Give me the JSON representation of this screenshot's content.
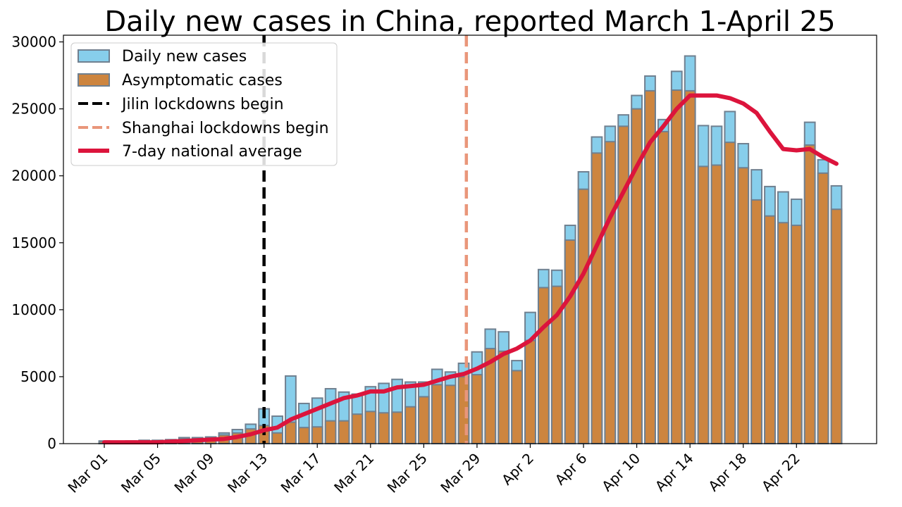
{
  "chart_data": {
    "type": "bar",
    "title": "Daily new cases in China, reported March 1-April 25",
    "xlabel": "",
    "ylabel": "",
    "ylim": [
      0,
      30500
    ],
    "yticks": [
      0,
      5000,
      10000,
      15000,
      20000,
      25000,
      30000
    ],
    "categories": [
      "Mar 01",
      "Mar 02",
      "Mar 03",
      "Mar 04",
      "Mar 05",
      "Mar 06",
      "Mar 07",
      "Mar 08",
      "Mar 09",
      "Mar 10",
      "Mar 11",
      "Mar 12",
      "Mar 13",
      "Mar 14",
      "Mar 15",
      "Mar 16",
      "Mar 17",
      "Mar 18",
      "Mar 19",
      "Mar 20",
      "Mar 21",
      "Mar 22",
      "Mar 23",
      "Mar 24",
      "Mar 25",
      "Mar 26",
      "Mar 27",
      "Mar 28",
      "Mar 29",
      "Mar 30",
      "Mar 31",
      "Apr 1",
      "Apr 2",
      "Apr 3",
      "Apr 4",
      "Apr 5",
      "Apr 6",
      "Apr 7",
      "Apr 8",
      "Apr 9",
      "Apr 10",
      "Apr 11",
      "Apr 12",
      "Apr 13",
      "Apr 14",
      "Apr 15",
      "Apr 16",
      "Apr 17",
      "Apr 18",
      "Apr 19",
      "Apr 20",
      "Apr 21",
      "Apr 22",
      "Apr 23",
      "Apr 24",
      "Apr 25"
    ],
    "xtick_labels": [
      {
        "index": 0,
        "label": "Mar 01"
      },
      {
        "index": 4,
        "label": "Mar 05"
      },
      {
        "index": 8,
        "label": "Mar 09"
      },
      {
        "index": 12,
        "label": "Mar 13"
      },
      {
        "index": 16,
        "label": "Mar 17"
      },
      {
        "index": 20,
        "label": "Mar 21"
      },
      {
        "index": 24,
        "label": "Mar 25"
      },
      {
        "index": 28,
        "label": "Mar 29"
      },
      {
        "index": 32,
        "label": "Apr 2"
      },
      {
        "index": 36,
        "label": "Apr 6"
      },
      {
        "index": 40,
        "label": "Apr 10"
      },
      {
        "index": 44,
        "label": "Apr 14"
      },
      {
        "index": 48,
        "label": "Apr 18"
      },
      {
        "index": 52,
        "label": "Apr 22"
      }
    ],
    "series": [
      {
        "name": "Daily new cases",
        "type": "bar",
        "color": "#87ceeb",
        "values": [
          200,
          150,
          200,
          250,
          250,
          300,
          450,
          450,
          500,
          800,
          1050,
          1450,
          2600,
          2050,
          5050,
          3000,
          3400,
          4100,
          3850,
          3700,
          4250,
          4500,
          4800,
          4600,
          4600,
          5550,
          5350,
          6000,
          6850,
          8550,
          8350,
          6200,
          9800,
          13000,
          12950,
          16300,
          20300,
          22900,
          23700,
          24550,
          26000,
          27450,
          24200,
          27800,
          28950,
          23750,
          23700,
          24800,
          22400,
          20450,
          19200,
          18800,
          18250,
          24000,
          21200,
          19250
        ]
      },
      {
        "name": "Asymptomatic cases",
        "type": "bar",
        "color": "#cd853f",
        "values": [
          150,
          100,
          150,
          200,
          200,
          250,
          400,
          400,
          400,
          650,
          800,
          1100,
          1350,
          800,
          1600,
          1200,
          1250,
          1700,
          1700,
          2200,
          2400,
          2300,
          2350,
          2750,
          3500,
          4400,
          4350,
          5000,
          5150,
          7100,
          6900,
          5450,
          7700,
          11650,
          11750,
          15200,
          19000,
          21700,
          22550,
          23700,
          25000,
          26350,
          23300,
          26400,
          26350,
          20700,
          20800,
          22500,
          20600,
          18200,
          17000,
          16500,
          16300,
          22300,
          20200,
          17500
        ]
      },
      {
        "name": "7-day national average",
        "type": "line",
        "color": "#dc143c",
        "values": [
          100,
          100,
          100,
          100,
          100,
          150,
          200,
          250,
          300,
          350,
          500,
          700,
          1000,
          1200,
          1800,
          2200,
          2600,
          3000,
          3400,
          3600,
          3900,
          3900,
          4200,
          4300,
          4400,
          4700,
          5000,
          5200,
          5600,
          6100,
          6700,
          7100,
          7700,
          8700,
          9600,
          11000,
          12700,
          14800,
          16900,
          18800,
          20700,
          22500,
          23700,
          25000,
          26000,
          26000,
          26000,
          25800,
          25400,
          24700,
          23300,
          22000,
          21900,
          22000,
          21400,
          20900
        ]
      }
    ],
    "vlines": [
      {
        "name": "Jilin lockdowns begin",
        "x_index": 12,
        "color": "#000000",
        "style": "dashed"
      },
      {
        "name": "Shanghai lockdowns begin",
        "x_index": 27.2,
        "color": "#e9967a",
        "style": "dashed"
      }
    ],
    "legend": {
      "position": "top-left",
      "entries": [
        "Daily new cases",
        "Asymptomatic cases",
        "Jilin lockdowns begin",
        "Shanghai lockdowns begin",
        "7-day national average"
      ]
    },
    "grid": false
  }
}
